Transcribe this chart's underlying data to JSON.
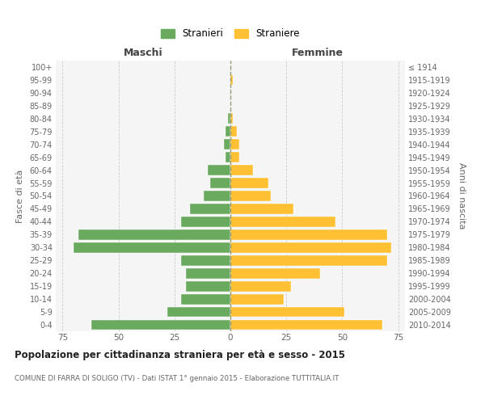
{
  "age_groups": [
    "0-4",
    "5-9",
    "10-14",
    "15-19",
    "20-24",
    "25-29",
    "30-34",
    "35-39",
    "40-44",
    "45-49",
    "50-54",
    "55-59",
    "60-64",
    "65-69",
    "70-74",
    "75-79",
    "80-84",
    "85-89",
    "90-94",
    "95-99",
    "100+"
  ],
  "birth_years": [
    "2010-2014",
    "2005-2009",
    "2000-2004",
    "1995-1999",
    "1990-1994",
    "1985-1989",
    "1980-1984",
    "1975-1979",
    "1970-1974",
    "1965-1969",
    "1960-1964",
    "1955-1959",
    "1950-1954",
    "1945-1949",
    "1940-1944",
    "1935-1939",
    "1930-1934",
    "1925-1929",
    "1920-1924",
    "1915-1919",
    "≤ 1914"
  ],
  "males": [
    62,
    28,
    22,
    20,
    20,
    22,
    70,
    68,
    22,
    18,
    12,
    9,
    10,
    2,
    3,
    2,
    1,
    0,
    0,
    0,
    0
  ],
  "females": [
    68,
    51,
    24,
    27,
    40,
    70,
    72,
    70,
    47,
    28,
    18,
    17,
    10,
    4,
    4,
    3,
    1,
    0,
    0,
    1,
    0
  ],
  "male_color": "#6aaa5e",
  "female_color": "#ffc133",
  "background_color": "#ffffff",
  "grid_color": "#cccccc",
  "title": "Popolazione per cittadinanza straniera per età e sesso - 2015",
  "subtitle": "COMUNE DI FARRA DI SOLIGO (TV) - Dati ISTAT 1° gennaio 2015 - Elaborazione TUTTITALIA.IT",
  "xlabel_left": "Maschi",
  "xlabel_right": "Femmine",
  "ylabel_left": "Fasce di età",
  "ylabel_right": "Anni di nascita",
  "legend_male": "Stranieri",
  "legend_female": "Straniere",
  "xlim": 78,
  "xticks": [
    -75,
    -50,
    -25,
    0,
    25,
    50,
    75
  ],
  "xticklabels": [
    "75",
    "50",
    "25",
    "0",
    "25",
    "50",
    "75"
  ]
}
